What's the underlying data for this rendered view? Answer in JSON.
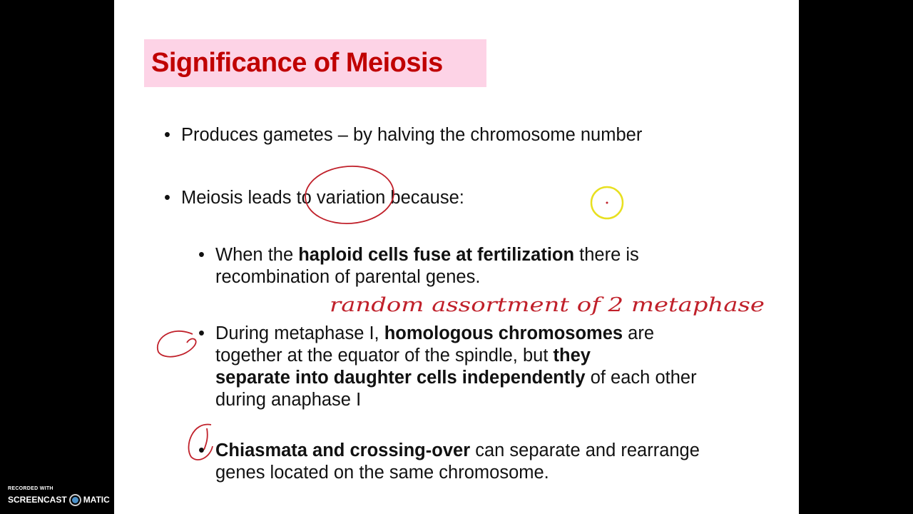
{
  "slide": {
    "title": "Significance of Meiosis",
    "bullets": [
      {
        "text": "Produces gametes – by halving the chromosome number"
      },
      {
        "text": "Meiosis leads to variation because:"
      }
    ],
    "sub_bullets": [
      {
        "parts": [
          "When the ",
          "haploid cells fuse at fertilization",
          " there is",
          "recombination of parental genes."
        ]
      },
      {
        "parts": [
          "During metaphase I, ",
          "homologous chromosomes",
          " are",
          "together at the equator   of the spindle, but ",
          "they",
          "separate into daughter cells independently",
          " of each other",
          "during anaphase I"
        ]
      },
      {
        "parts": [
          "Chiasmata and crossing-over",
          " can separate and rearrange",
          "genes located on the same chromosome."
        ]
      }
    ],
    "bullet_glyph": "•"
  },
  "annotation": {
    "handwriting": "random assortment of 2 metaphase",
    "ink_color": "#c0202a",
    "cursor_color": "#e8e020"
  },
  "watermark": {
    "line1": "RECORDED WITH",
    "brand_left": "SCREENCAST",
    "brand_right": "MATIC"
  }
}
